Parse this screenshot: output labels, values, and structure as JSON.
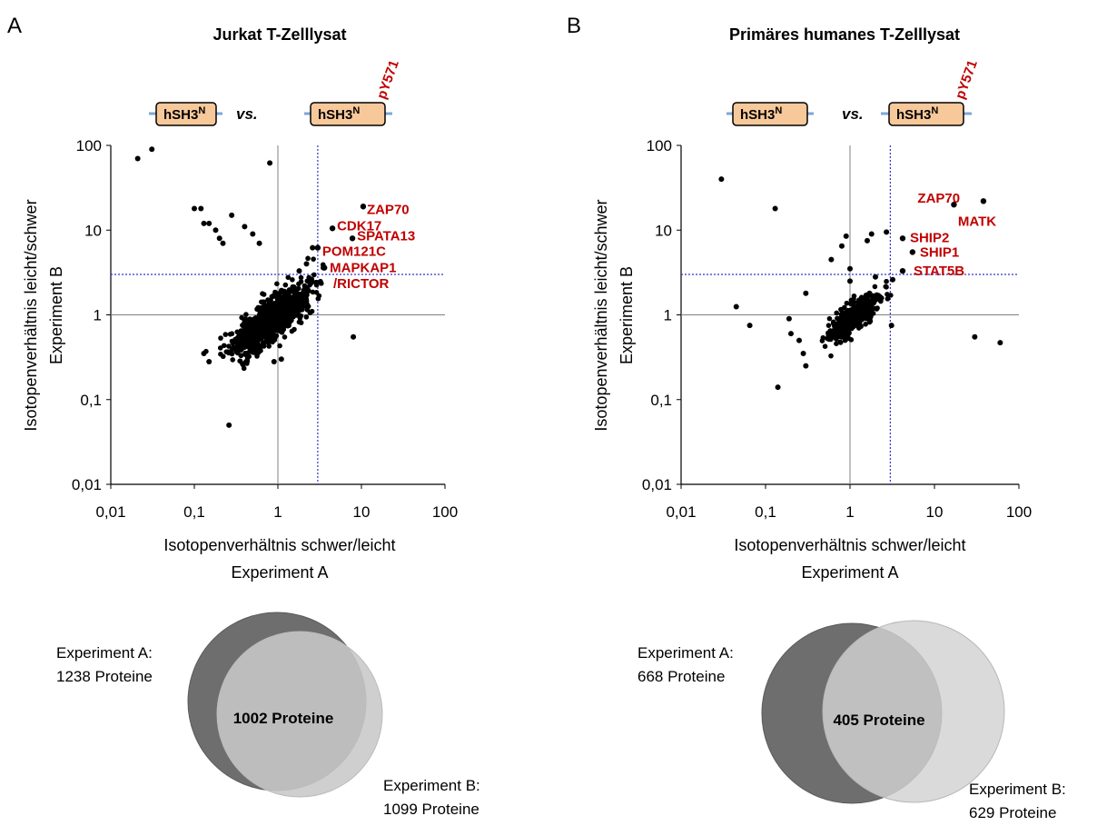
{
  "colors": {
    "points": "#000000",
    "highlight": "#c00000",
    "guide_line": "#3333cc",
    "center_line": "#808080",
    "construct_fill": "#f7c89a",
    "construct_linker": "#7ea6d8",
    "venn_a": "#6e6e6e",
    "venn_b": "#d0d0d0"
  },
  "panels": [
    {
      "letter": "A",
      "title": "Jurkat T-Zelllysat",
      "construct_left": "hSH3",
      "construct_left_sup": "N",
      "vs": "vs.",
      "construct_right": "hSH3",
      "construct_right_sup": "N",
      "phospho": "pY571",
      "x_label": "Isotopenverhältnis schwer/leicht",
      "x_label_2": "Experiment A",
      "y_label": "Isotopenverhältnis leicht/schwer",
      "y_label_2": "Experiment B",
      "venn": {
        "a_label": "Experiment A:",
        "a_count": "1238 Proteine",
        "b_label": "Experiment B:",
        "b_count": "1099 Proteine",
        "overlap": "1002 Proteine"
      }
    },
    {
      "letter": "B",
      "title": "Primäres humanes T-Zelllysat",
      "construct_left": "hSH3",
      "construct_left_sup": "N",
      "vs": "vs.",
      "construct_right": "hSH3",
      "construct_right_sup": "N",
      "phospho": "pY571",
      "x_label": "Isotopenverhältnis schwer/leicht",
      "x_label_2": "Experiment A",
      "y_label": "Isotopenverhältnis leicht/schwer",
      "y_label_2": "Experiment B",
      "venn": {
        "a_label": "Experiment A:",
        "a_count": "668 Proteine",
        "b_label": "Experiment B:",
        "b_count": "629 Proteine",
        "overlap": "405 Proteine"
      }
    }
  ],
  "chart_data": [
    {
      "type": "scatter",
      "title": "Jurkat T-Zelllysat",
      "xlabel": "Isotopenverhältnis schwer/leicht Experiment A",
      "ylabel": "Isotopenverhältnis leicht/schwer Experiment B",
      "x_scale": "log",
      "y_scale": "log",
      "xlim": [
        0.01,
        100
      ],
      "ylim": [
        0.01,
        100
      ],
      "x_ticks": [
        "0,01",
        "0,1",
        "1",
        "10",
        "100"
      ],
      "y_ticks": [
        "0,01",
        "0,1",
        "1",
        "10",
        "100"
      ],
      "threshold": 3,
      "cloud": {
        "count": 1002,
        "center": [
          0.8,
          0.85
        ],
        "spread": 0.22,
        "seed": 11
      },
      "points": [
        [
          0.021,
          70
        ],
        [
          0.031,
          90
        ],
        [
          0.8,
          62
        ],
        [
          0.1,
          18
        ],
        [
          0.12,
          18
        ],
        [
          0.13,
          12
        ],
        [
          0.15,
          12
        ],
        [
          0.18,
          10
        ],
        [
          0.2,
          8
        ],
        [
          0.22,
          7
        ],
        [
          0.28,
          15
        ],
        [
          0.4,
          11
        ],
        [
          0.5,
          9
        ],
        [
          0.6,
          7
        ],
        [
          0.13,
          0.35
        ],
        [
          0.15,
          0.28
        ],
        [
          0.26,
          0.05
        ],
        [
          8.0,
          0.55
        ],
        [
          0.9,
          0.28
        ],
        [
          1.1,
          0.3
        ],
        [
          2.6,
          6.2
        ],
        [
          2.2,
          4.0
        ],
        [
          3.5,
          3.6
        ],
        [
          1.8,
          3.3
        ]
      ],
      "highlighted": [
        {
          "label": "ZAP70",
          "x": 10.5,
          "y": 19
        },
        {
          "label": "CDK17",
          "x": 4.5,
          "y": 10.5
        },
        {
          "label": "SPATA13",
          "x": 7.8,
          "y": 8.0
        },
        {
          "label": "POM121C",
          "x": 3.0,
          "y": 6.2
        },
        {
          "label": "MAPKAP1",
          "x": 3.6,
          "y": 3.6
        },
        {
          "label": "/RICTOR",
          "x": null,
          "y": null
        }
      ]
    },
    {
      "type": "scatter",
      "title": "Primäres humanes T-Zelllysat",
      "xlabel": "Isotopenverhältnis schwer/leicht Experiment A",
      "ylabel": "Isotopenverhältnis leicht/schwer Experiment B",
      "x_scale": "log",
      "y_scale": "log",
      "xlim": [
        0.01,
        100
      ],
      "ylim": [
        0.01,
        100
      ],
      "x_ticks": [
        "0,01",
        "0,1",
        "1",
        "10",
        "100"
      ],
      "y_ticks": [
        "0,01",
        "0,1",
        "1",
        "10",
        "100"
      ],
      "threshold": 3,
      "cloud": {
        "count": 405,
        "center": [
          1.1,
          0.95
        ],
        "spread": 0.15,
        "seed": 29
      },
      "points": [
        [
          0.03,
          40
        ],
        [
          0.045,
          1.25
        ],
        [
          0.065,
          0.75
        ],
        [
          0.13,
          18
        ],
        [
          0.14,
          0.14
        ],
        [
          0.19,
          0.9
        ],
        [
          0.2,
          0.6
        ],
        [
          0.25,
          0.5
        ],
        [
          0.28,
          0.35
        ],
        [
          0.3,
          0.25
        ],
        [
          0.3,
          1.8
        ],
        [
          0.6,
          4.5
        ],
        [
          0.8,
          6.5
        ],
        [
          0.9,
          8.5
        ],
        [
          1.0,
          3.5
        ],
        [
          1.0,
          2.5
        ],
        [
          1.6,
          7.5
        ],
        [
          1.8,
          9.0
        ],
        [
          2.7,
          9.5
        ],
        [
          3.1,
          0.75
        ],
        [
          30,
          0.55
        ],
        [
          60,
          0.47
        ],
        [
          3.2,
          2.6
        ],
        [
          2.0,
          2.8
        ]
      ],
      "highlighted": [
        {
          "label": "ZAP70",
          "x": 17,
          "y": 20
        },
        {
          "label": "MATK",
          "x": 38,
          "y": 22
        },
        {
          "label": "SHIP2",
          "x": 4.2,
          "y": 8.0
        },
        {
          "label": "SHIP1",
          "x": 5.5,
          "y": 5.5
        },
        {
          "label": "STAT5B",
          "x": 4.2,
          "y": 3.3
        }
      ]
    }
  ]
}
